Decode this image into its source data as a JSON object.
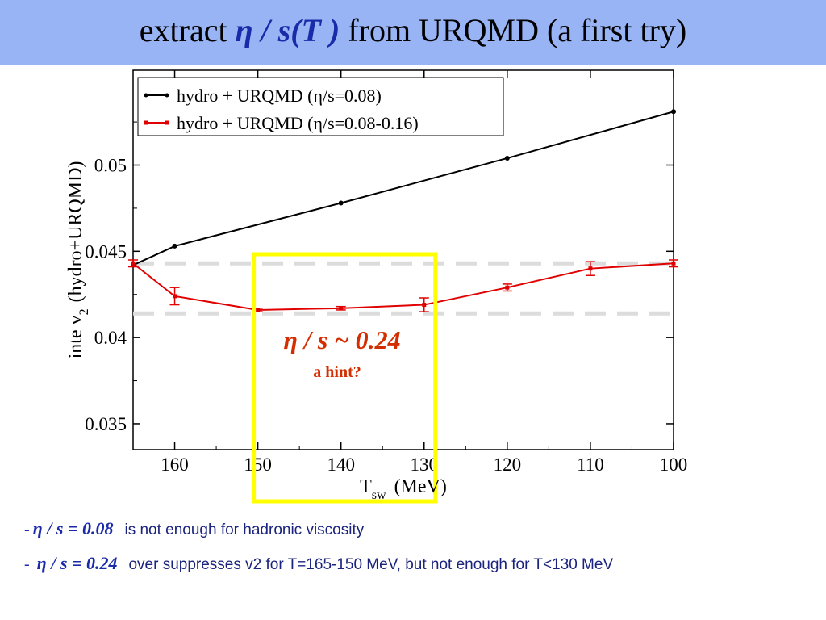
{
  "slide": {
    "title_prefix": "extract",
    "title_symbol": "η / s(T )",
    "title_suffix": "from URQMD  (a first try)"
  },
  "chart_data": {
    "type": "line",
    "xlabel": "T",
    "xlabel_sub": "sw",
    "xlabel_unit": "(MeV)",
    "ylabel": "inte v",
    "ylabel_sub": "2",
    "ylabel_rest": "(hydro+URQMD)",
    "xlim": [
      165,
      100
    ],
    "ylim": [
      0.0335,
      0.0555
    ],
    "x_reversed": true,
    "xticks": [
      "160",
      "150",
      "140",
      "130",
      "120",
      "110",
      "100"
    ],
    "yticks": [
      "0.035",
      "0.04",
      "0.045",
      "0.05"
    ],
    "legend_position": "top-left",
    "series": [
      {
        "name": "hydro + URQMD (η/s=0.08)",
        "color": "#000000",
        "x": [
          165,
          160,
          140,
          120,
          100
        ],
        "y": [
          0.0442,
          0.0453,
          0.0478,
          0.0504,
          0.0531
        ]
      },
      {
        "name": "hydro + URQMD (η/s=0.08-0.16)",
        "color": "#e00000",
        "x": [
          165,
          160,
          150,
          140,
          130,
          120,
          110,
          100
        ],
        "y": [
          0.0443,
          0.0424,
          0.0416,
          0.0417,
          0.0419,
          0.0429,
          0.044,
          0.0443
        ],
        "err": [
          0.0002,
          0.0005,
          0.0001,
          0.0001,
          0.0004,
          0.0002,
          0.0004,
          0.0002
        ]
      }
    ],
    "reference_lines_y": [
      0.0443,
      0.0414
    ],
    "reference_line_color": "#dcdcdc",
    "highlight_box_x": [
      150,
      130
    ],
    "highlight_color": "#ffff00",
    "annotation": {
      "symbol": "η / s ~ 0.24",
      "text": "a hint?",
      "color": "#d42e00"
    }
  },
  "notes": [
    {
      "prefix": "-",
      "symbol": "η / s = 0.08",
      "text": "is not enough for hadronic viscosity"
    },
    {
      "prefix": "- ",
      "symbol": "η / s = 0.24",
      "text": "over suppresses v2 for T=165-150 MeV, but not enough for T<130 MeV"
    }
  ]
}
